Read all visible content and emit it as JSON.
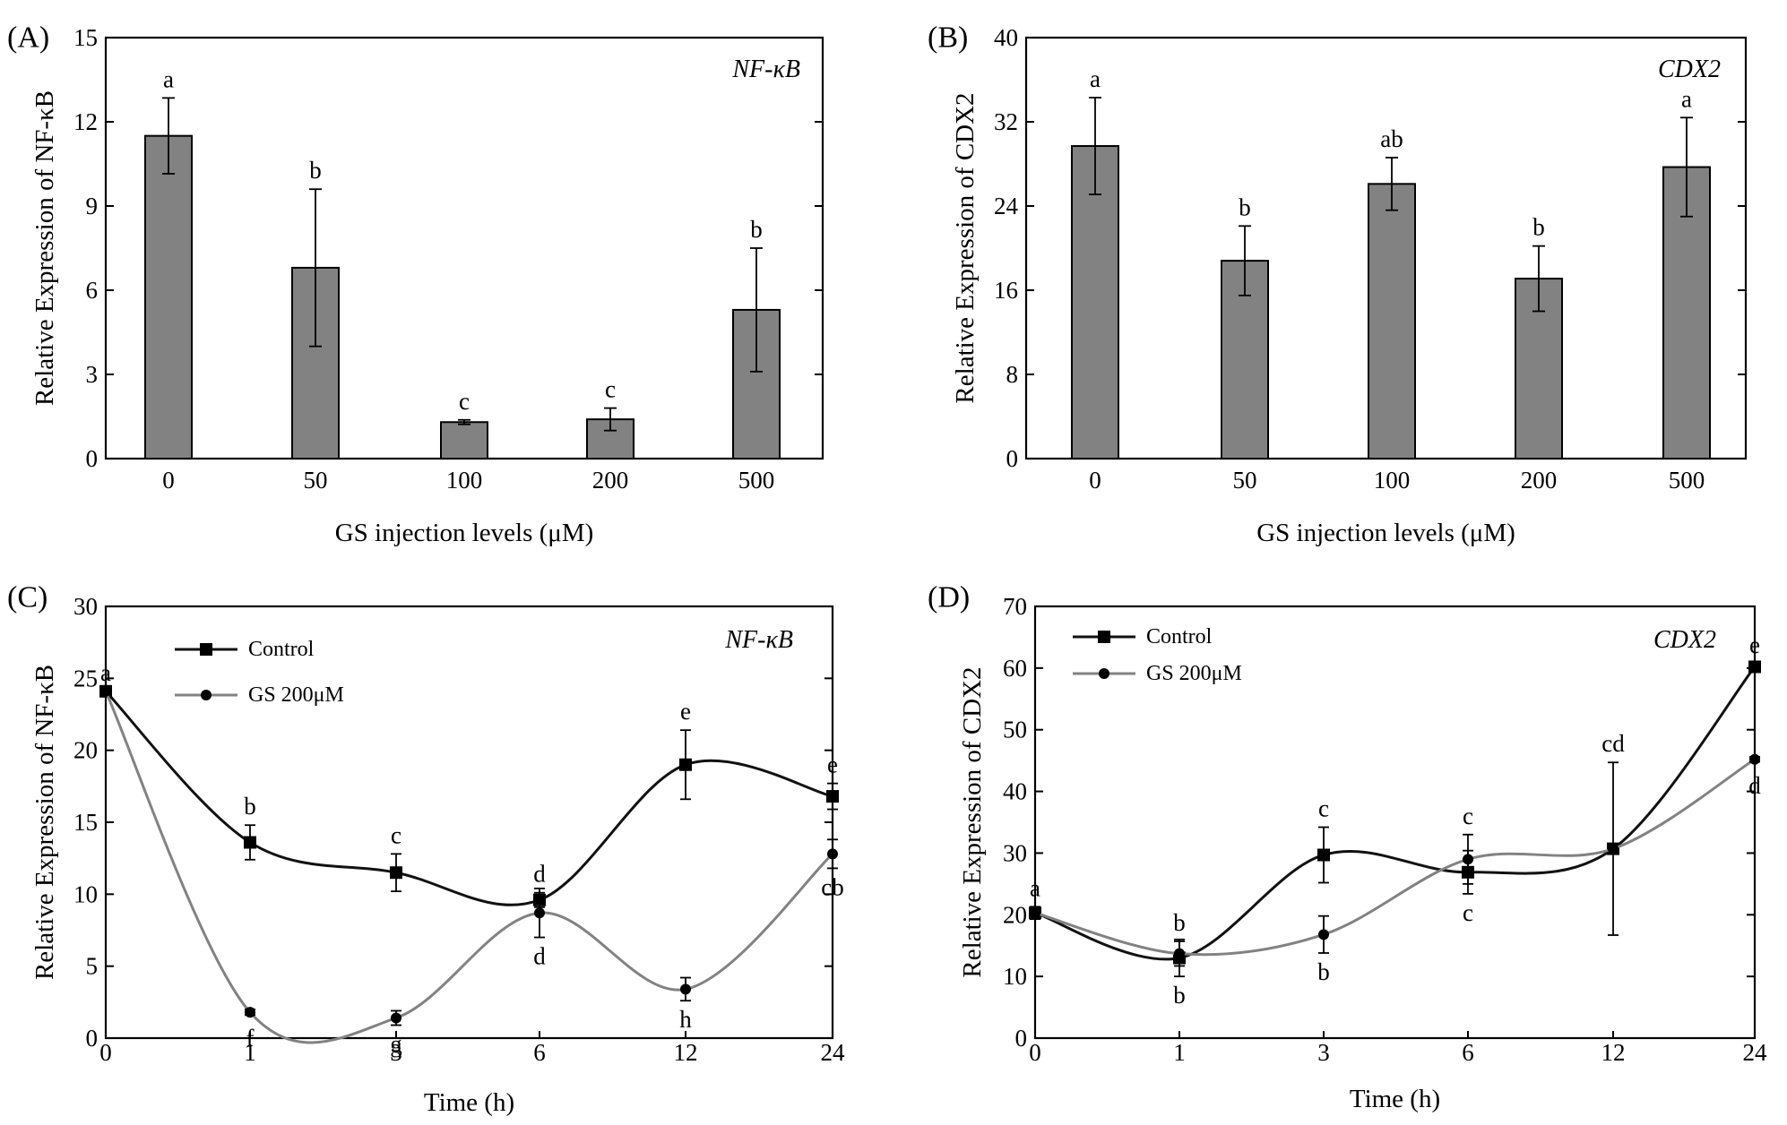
{
  "chart_data": [
    {
      "panel": "(A)",
      "type": "bar",
      "gene_label": "NF-κB",
      "xlabel": "GS injection levels (μM)",
      "ylabel": "Relative Expression of NF-κB",
      "ylim": [
        0,
        15
      ],
      "yticks": [
        0,
        3,
        6,
        9,
        12,
        15
      ],
      "categories": [
        "0",
        "50",
        "100",
        "200",
        "500"
      ],
      "values": [
        11.5,
        6.8,
        1.3,
        1.4,
        5.3
      ],
      "errors": [
        1.35,
        2.8,
        0.08,
        0.4,
        2.2
      ],
      "letters": [
        "a",
        "b",
        "c",
        "c",
        "b"
      ],
      "bar_color": "#828282"
    },
    {
      "panel": "(B)",
      "type": "bar",
      "gene_label": "CDX2",
      "xlabel": "GS injection levels (μM)",
      "ylabel": "Relative Expression of CDX2",
      "ylim": [
        0,
        40
      ],
      "yticks": [
        0,
        8,
        16,
        24,
        32,
        40
      ],
      "categories": [
        "0",
        "50",
        "100",
        "200",
        "500"
      ],
      "values": [
        29.7,
        18.8,
        26.1,
        17.1,
        27.7
      ],
      "errors": [
        4.6,
        3.3,
        2.5,
        3.1,
        4.7
      ],
      "letters": [
        "a",
        "b",
        "ab",
        "b",
        "a"
      ],
      "bar_color": "#828282"
    },
    {
      "panel": "(C)",
      "type": "line",
      "gene_label": "NF-κB",
      "xlabel": "Time (h)",
      "ylabel": "Relative Expression of NF-κB",
      "ylim": [
        0,
        30
      ],
      "yticks": [
        0,
        5,
        10,
        15,
        20,
        25,
        30
      ],
      "x": [
        "0",
        "1",
        "3",
        "6",
        "12",
        "24"
      ],
      "series": [
        {
          "name": "Control",
          "marker": "square",
          "color": "#111111",
          "values": [
            24.1,
            13.6,
            11.5,
            9.6,
            19.0,
            16.8
          ],
          "errors": [
            0,
            1.2,
            1.3,
            0.5,
            2.4,
            0.9
          ],
          "letters": [
            "a",
            "b",
            "c",
            "d",
            "e",
            "e"
          ]
        },
        {
          "name": "GS 200μM",
          "marker": "circle",
          "color": "#828282",
          "values": [
            24.1,
            1.8,
            1.4,
            8.7,
            3.4,
            12.8
          ],
          "errors": [
            0,
            0.2,
            0.5,
            1.7,
            0.8,
            1.0
          ],
          "letters": [
            "",
            "f",
            "g",
            "d",
            "h",
            "cb"
          ]
        }
      ],
      "legend": "top-left"
    },
    {
      "panel": "(D)",
      "type": "line",
      "gene_label": "CDX2",
      "xlabel": "Time (h)",
      "ylabel": "Relative Expression of CDX2",
      "ylim": [
        0,
        70
      ],
      "yticks": [
        0,
        10,
        20,
        30,
        40,
        50,
        60,
        70
      ],
      "x": [
        "0",
        "1",
        "3",
        "6",
        "12",
        "24"
      ],
      "series": [
        {
          "name": "Control",
          "marker": "square",
          "color": "#111111",
          "values": [
            20.3,
            13.0,
            29.7,
            26.9,
            30.7,
            60.2
          ],
          "errors": [
            1.0,
            3.0,
            4.5,
            3.5,
            14.0,
            0.5
          ],
          "letters": [
            "a",
            "b",
            "c",
            "c",
            "cd",
            "e"
          ]
        },
        {
          "name": "GS 200μM",
          "marker": "circle",
          "color": "#828282",
          "values": [
            20.3,
            13.7,
            16.8,
            29.0,
            30.7,
            45.2
          ],
          "errors": [
            0,
            2.0,
            3.0,
            4.0,
            0,
            0.4
          ],
          "letters": [
            "",
            "b",
            "b",
            "c",
            "",
            "d"
          ]
        }
      ],
      "legend": "top-left"
    }
  ]
}
